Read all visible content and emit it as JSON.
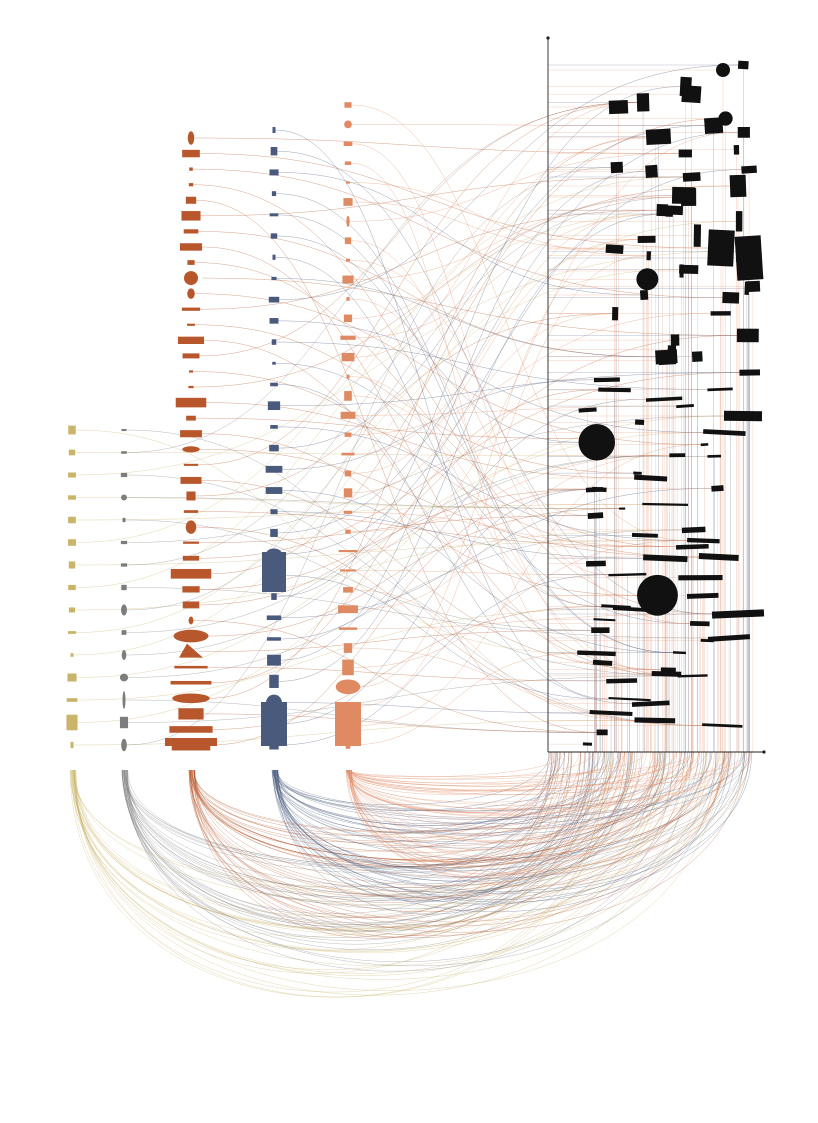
{
  "title": "",
  "background": "#ffffff",
  "palette": {
    "ochre": "#c9b46a",
    "gray": "#7d7d7d",
    "rust": "#b8572c",
    "navy": "#4a5a7c",
    "salmon": "#e08a63",
    "black": "#111111",
    "axis": "#222222"
  },
  "source_columns": [
    {
      "name": "ochre",
      "color_key": "ochre",
      "item_count": 15
    },
    {
      "name": "gray",
      "color_key": "gray",
      "item_count": 15
    },
    {
      "name": "rust",
      "color_key": "rust",
      "item_count": 40
    },
    {
      "name": "navy",
      "color_key": "navy",
      "item_count": 30
    },
    {
      "name": "salmon",
      "color_key": "salmon",
      "item_count": 34
    }
  ],
  "target_field": {
    "color_key": "black",
    "item_count": 95
  },
  "legend": []
}
